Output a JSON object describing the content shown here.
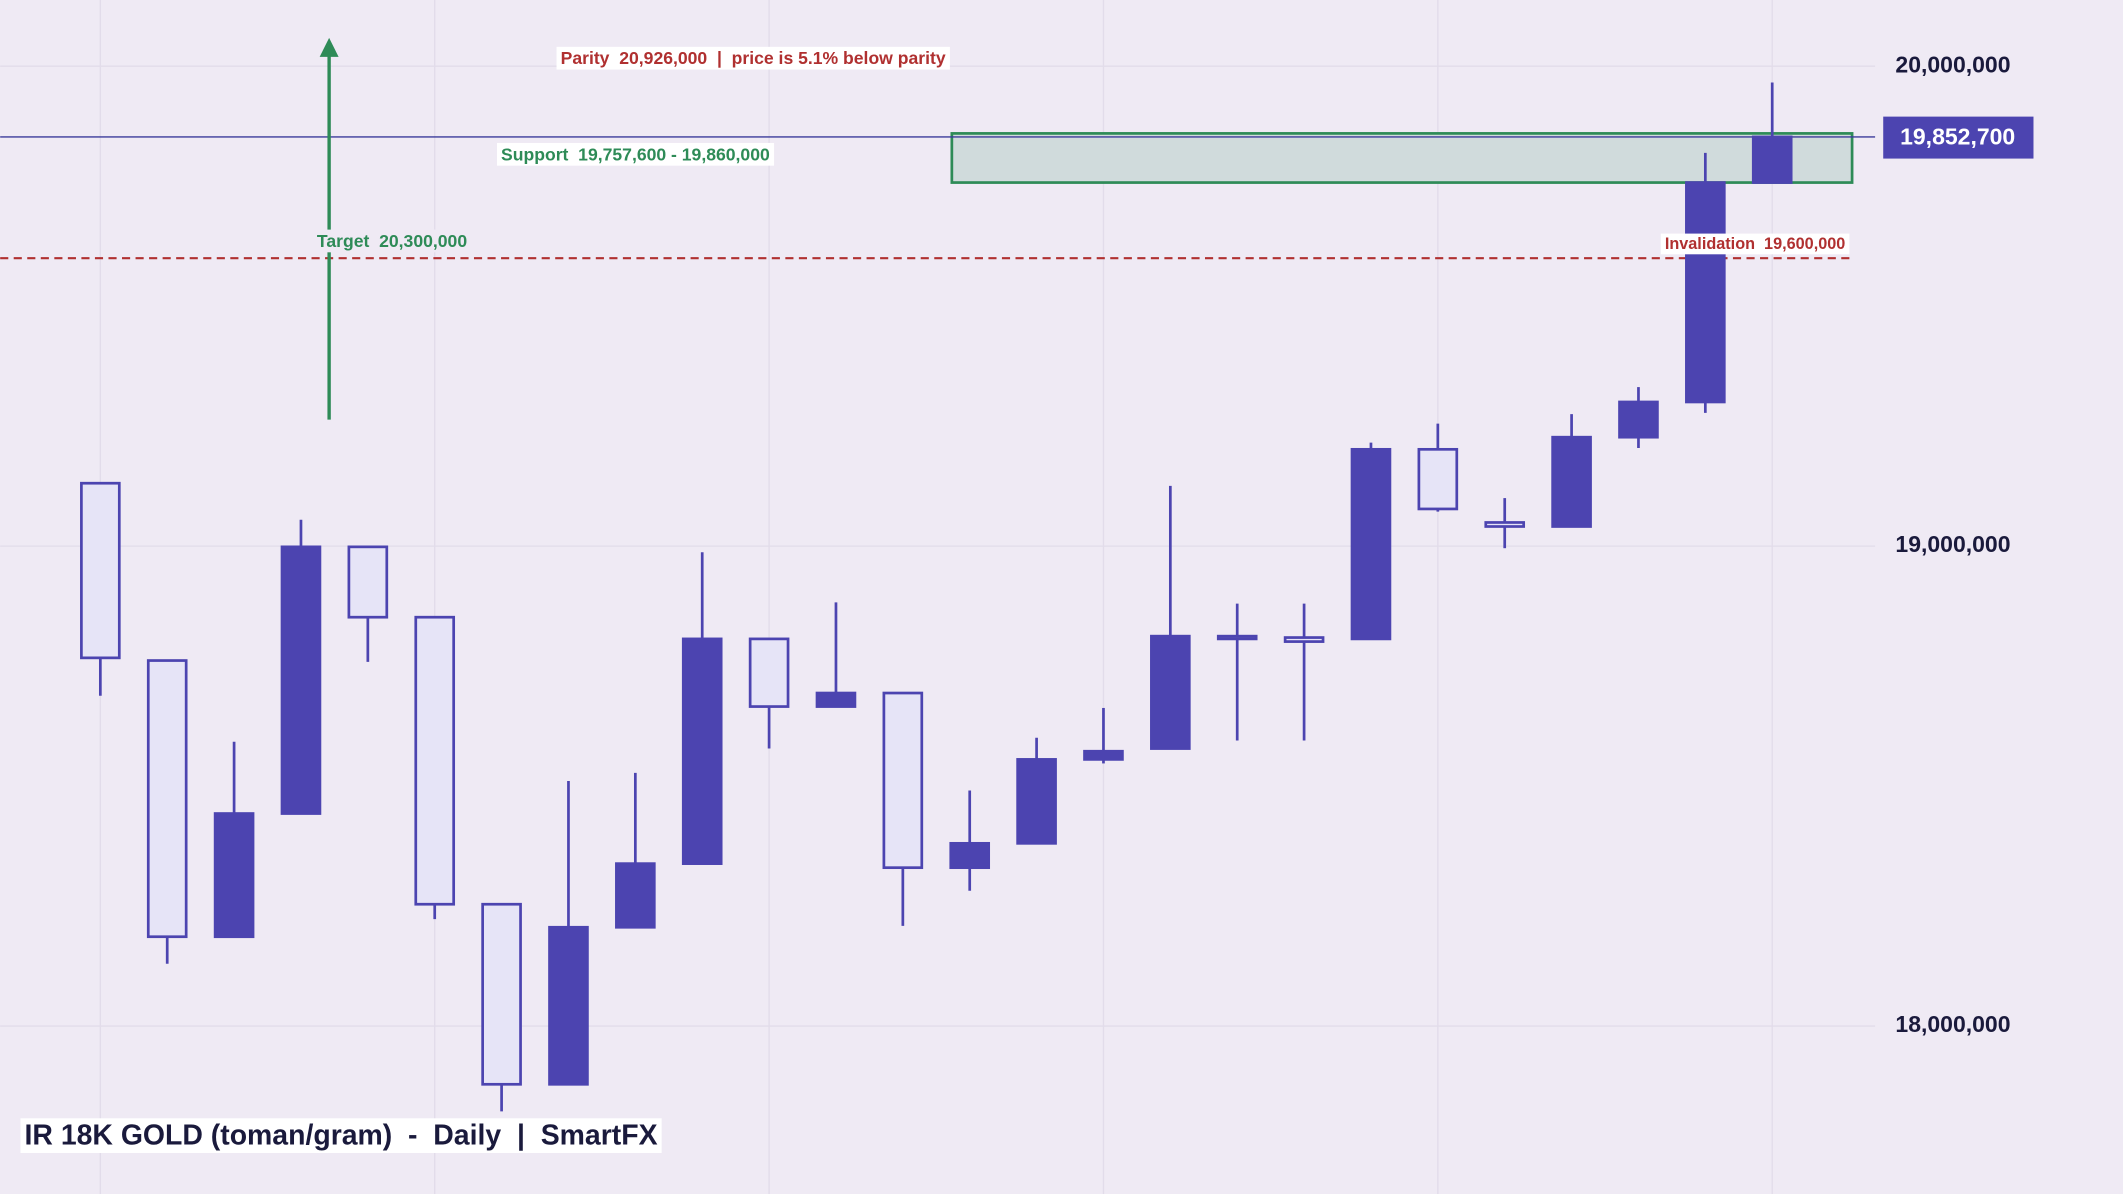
{
  "chart_data": {
    "type": "candlestick",
    "title": "IR 18K GOLD (toman/gram)  -  Daily  |  SmartFX",
    "categories": [
      null,
      null,
      null,
      null,
      null,
      null,
      null,
      null,
      null,
      null,
      null,
      null,
      null,
      null,
      null,
      null,
      null,
      null,
      null,
      null,
      null,
      null,
      null,
      null,
      null,
      null
    ],
    "open": [
      19131100,
      18761600,
      18186100,
      18442800,
      18998500,
      18851900,
      18253800,
      17878600,
      18205800,
      18338400,
      18806700,
      18665700,
      18693900,
      18330000,
      18380700,
      18555600,
      18578200,
      18812400,
      18809500,
      18806700,
      19201700,
      19049300,
      19040900,
      19227000,
      19300400,
      19757600
    ],
    "high": [
      19131100,
      18761600,
      18592300,
      19055000,
      18998500,
      18851900,
      18253800,
      18510500,
      18527400,
      18987300,
      18806700,
      18882900,
      18693900,
      18490800,
      18600800,
      18662800,
      19125500,
      18880100,
      18880100,
      19215800,
      19255300,
      19100100,
      19275000,
      19331400,
      19819500,
      19966100
    ],
    "low": [
      18688200,
      18129700,
      18186100,
      18442800,
      18758800,
      18222800,
      17822200,
      17878600,
      18205800,
      18338400,
      18578200,
      18665700,
      18208700,
      18282000,
      18380700,
      18547200,
      18578200,
      18595100,
      18595100,
      18806700,
      19071900,
      18995700,
      19040900,
      19204500,
      19277800,
      19757600
    ],
    "close": [
      18767200,
      18186100,
      18442800,
      18998500,
      18851900,
      18253800,
      17878600,
      18205800,
      18338400,
      18806700,
      18665700,
      18693900,
      18330000,
      18380700,
      18555600,
      18572600,
      18812400,
      18806700,
      18801100,
      19201700,
      19077500,
      19040900,
      19227000,
      19300400,
      19757600,
      19852700
    ],
    "up_color": "#4c44b0",
    "down_color": "#e6e4f7",
    "ylim": [
      17650000,
      20138000
    ],
    "yticks": [
      {
        "value": 18000000,
        "label": "18,000,000"
      },
      {
        "value": 19000000,
        "label": "19,000,000"
      },
      {
        "value": 20000000,
        "label": "20,000,000"
      }
    ],
    "grid": true,
    "last_price": {
      "value": 19852700,
      "label": "19,852,700"
    },
    "support": {
      "label": "Support  19,757,600 - 19,860,000",
      "low": 19757600,
      "high": 19860000
    },
    "invalidation": {
      "label": "Invalidation  19,600,000",
      "value": 19600000
    },
    "target": {
      "label": "Target  20,300,000"
    },
    "parity": {
      "label": "Parity  20,926,000  |  price is 5.1% below parity"
    }
  }
}
